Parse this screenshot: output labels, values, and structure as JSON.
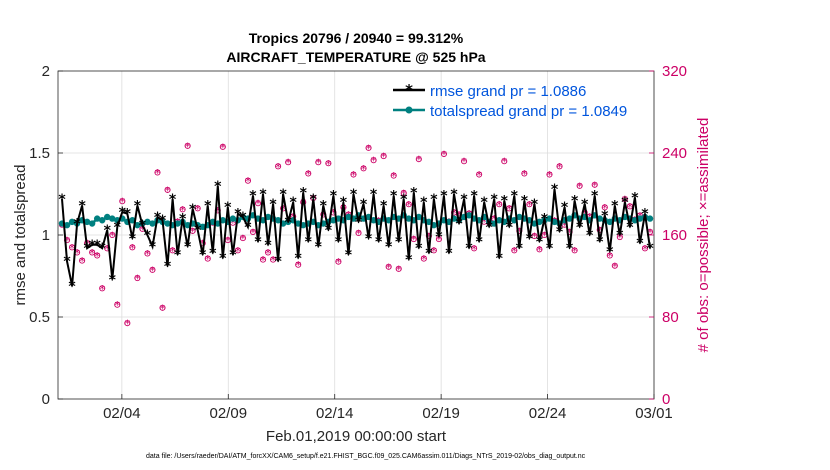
{
  "chart_data": {
    "type": "line",
    "title_line1": "Tropics 20796 / 20940 = 99.312%",
    "title_line2": "AIRCRAFT_TEMPERATURE @ 525 hPa",
    "xlabel": "Feb.01,2019 00:00:00 start",
    "ylabel_left": "rmse and totalspread",
    "ylabel_right": "# of obs: o=possible; ×=assimilated",
    "x_tick_labels": [
      "02/04",
      "02/09",
      "02/14",
      "02/19",
      "02/24",
      "03/01"
    ],
    "x_tick_days": [
      3,
      8,
      13,
      18,
      23,
      28
    ],
    "xlim_days": [
      0,
      28
    ],
    "ylim_left": [
      0,
      2
    ],
    "y_ticks_left": [
      "0",
      "0.5",
      "1",
      "1.5",
      "2"
    ],
    "y_ticks_left_values": [
      0,
      0.5,
      1,
      1.5,
      2
    ],
    "ylim_right": [
      0,
      320
    ],
    "y_ticks_right": [
      "0",
      "80",
      "160",
      "240",
      "320"
    ],
    "y_ticks_right_values": [
      0,
      80,
      160,
      240,
      320
    ],
    "footer": "data file: /Users/raeder/DAI/ATM_forcXX/CAM6_setup/f.e21.FHIST_BGC.f09_025.CAM6assim.011/Diags_NTrS_2019-02/obs_diag_output.nc",
    "colors": {
      "rmse": "#000000",
      "totalspread": "#008080",
      "obs": "#cc0066",
      "legend_text": "#0055dd",
      "grid": "#dddddd"
    },
    "series": [
      {
        "name": "rmse grand pr = 1.0886",
        "marker": "star",
        "values": [
          1.22,
          0.84,
          0.69,
          1.07,
          1.18,
          0.92,
          0.94,
          0.94,
          0.92,
          1.03,
          0.73,
          1.05,
          1.14,
          1.13,
          0.98,
          1.18,
          1.06,
          1.0,
          0.93,
          1.11,
          1.09,
          0.81,
          1.22,
          0.88,
          1.1,
          0.93,
          1.16,
          1.03,
          0.88,
          1.18,
          0.89,
          1.3,
          0.86,
          1.17,
          0.88,
          1.13,
          1.11,
          1.05,
          1.24,
          0.96,
          1.25,
          0.94,
          1.19,
          0.84,
          1.25,
          1.08,
          1.2,
          0.86,
          1.26,
          0.96,
          1.22,
          0.93,
          1.18,
          1.03,
          1.24,
          0.96,
          1.2,
          0.88,
          1.25,
          1.08,
          1.19,
          0.98,
          1.25,
          0.96,
          1.18,
          0.93,
          1.24,
          0.96,
          1.22,
          0.85,
          1.26,
          0.92,
          1.2,
          0.89,
          1.22,
          0.99,
          1.24,
          0.89,
          1.25,
          1.07,
          1.22,
          0.92,
          1.24,
          0.96,
          1.2,
          1.05,
          1.22,
          0.86,
          1.21,
          1.05,
          1.24,
          0.92,
          1.21,
          0.98,
          1.19,
          0.96,
          1.1,
          0.92,
          1.28,
          1.02,
          1.17,
          0.92,
          1.21,
          1.05,
          1.19,
          1.0,
          1.24,
          0.96,
          1.12,
          0.9,
          1.18,
          1.0,
          1.2,
          1.05,
          1.23,
          0.95,
          1.13,
          0.92
        ]
      },
      {
        "name": "totalspread grand pr = 1.0849",
        "marker": "circle",
        "values": [
          1.07,
          1.06,
          1.08,
          1.07,
          1.09,
          1.08,
          1.07,
          1.1,
          1.09,
          1.11,
          1.1,
          1.09,
          1.1,
          1.08,
          1.09,
          1.06,
          1.07,
          1.08,
          1.07,
          1.09,
          1.08,
          1.07,
          1.06,
          1.07,
          1.08,
          1.06,
          1.07,
          1.06,
          1.05,
          1.06,
          1.08,
          1.07,
          1.09,
          1.08,
          1.1,
          1.09,
          1.11,
          1.1,
          1.12,
          1.1,
          1.09,
          1.11,
          1.1,
          1.09,
          1.07,
          1.08,
          1.09,
          1.07,
          1.06,
          1.07,
          1.08,
          1.06,
          1.07,
          1.08,
          1.09,
          1.1,
          1.09,
          1.11,
          1.1,
          1.12,
          1.1,
          1.11,
          1.09,
          1.08,
          1.1,
          1.09,
          1.11,
          1.1,
          1.12,
          1.1,
          1.09,
          1.11,
          1.09,
          1.08,
          1.06,
          1.07,
          1.09,
          1.08,
          1.1,
          1.09,
          1.11,
          1.12,
          1.1,
          1.09,
          1.11,
          1.08,
          1.07,
          1.09,
          1.08,
          1.1,
          1.09,
          1.11,
          1.1,
          1.09,
          1.07,
          1.08,
          1.09,
          1.1,
          1.08,
          1.07,
          1.09,
          1.1,
          1.12,
          1.1,
          1.11,
          1.09,
          1.12,
          1.1,
          1.09,
          1.08,
          1.1,
          1.09,
          1.11,
          1.1,
          1.09,
          1.1,
          1.11,
          1.1
        ]
      }
    ],
    "obs_counts": [
      170,
      155,
      148,
      143,
      135,
      152,
      143,
      140,
      108,
      147,
      160,
      92,
      193,
      74,
      148,
      118,
      166,
      142,
      126,
      221,
      89,
      204,
      145,
      173,
      185,
      247,
      164,
      186,
      152,
      137,
      172,
      184,
      246,
      155,
      172,
      145,
      157,
      213,
      163,
      191,
      136,
      143,
      136,
      227,
      186,
      231,
      178,
      131,
      192,
      220,
      196,
      231,
      180,
      230,
      182,
      134,
      187,
      180,
      219,
      162,
      225,
      245,
      233,
      174,
      237,
      129,
      218,
      127,
      201,
      190,
      156,
      234,
      137,
      159,
      145,
      156,
      239,
      173,
      182,
      180,
      232,
      181,
      147,
      219,
      173,
      172,
      176,
      190,
      232,
      186,
      145,
      164,
      220,
      190,
      159,
      146,
      160,
      219,
      174,
      227,
      170,
      163,
      145,
      208,
      182,
      178,
      209,
      165,
      187,
      140,
      130,
      158,
      195,
      188,
      175,
      179,
      147,
      163
    ]
  },
  "legend": {
    "rmse_label": "rmse grand pr = 1.0886",
    "totalspread_label": "totalspread grand pr = 1.0849"
  }
}
